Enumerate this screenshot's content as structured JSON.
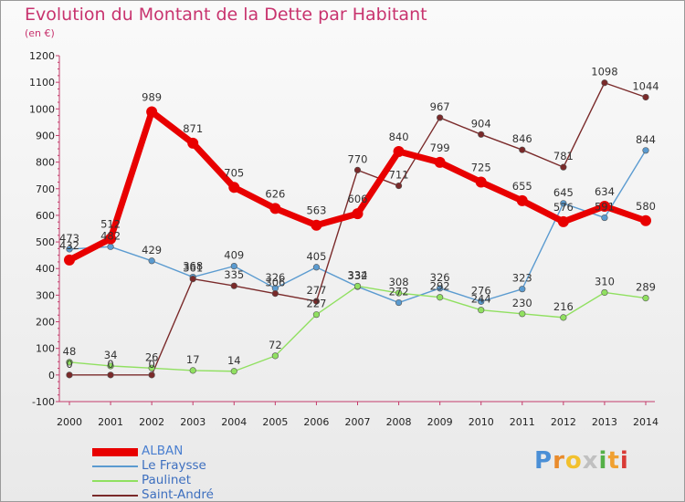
{
  "header": {
    "title": "Evolution du Montant de la Dette par Habitant",
    "subtitle": "(en €)"
  },
  "brand": {
    "letters": [
      "P",
      "r",
      "o",
      "x",
      "i",
      "t",
      "i"
    ],
    "colors": [
      "#4b8fd6",
      "#e98b2c",
      "#f2c12e",
      "#c0c0c0",
      "#55b047",
      "#f0a030",
      "#d93a35"
    ]
  },
  "chart_data": {
    "type": "line",
    "title": "Evolution du Montant de la Dette par Habitant",
    "subtitle": "(en €)",
    "xlabel": "",
    "ylabel": "",
    "x": [
      "2000",
      "2001",
      "2002",
      "2003",
      "2004",
      "2005",
      "2006",
      "2007",
      "2008",
      "2009",
      "2010",
      "2011",
      "2012",
      "2013",
      "2014"
    ],
    "ylim": [
      -100,
      1200
    ],
    "yticks": [
      -100,
      0,
      100,
      200,
      300,
      400,
      500,
      600,
      700,
      800,
      900,
      1000,
      1100,
      1200
    ],
    "grid": false,
    "legend_position": "bottom-left",
    "series": [
      {
        "name": "ALBAN",
        "color": "#e80000",
        "values": [
          432,
          512,
          989,
          871,
          705,
          626,
          563,
          606,
          840,
          799,
          725,
          655,
          576,
          634,
          580
        ]
      },
      {
        "name": "Le Fraysse",
        "color": "#5b9bd0",
        "values": [
          473,
          482,
          429,
          368,
          409,
          326,
          405,
          332,
          272,
          326,
          276,
          323,
          645,
          591,
          844
        ]
      },
      {
        "name": "Paulinet",
        "color": "#90e060",
        "values": [
          48,
          34,
          26,
          17,
          14,
          72,
          227,
          334,
          308,
          292,
          244,
          230,
          216,
          310,
          289
        ]
      },
      {
        "name": "Saint-André",
        "color": "#7a2a2a",
        "values": [
          0,
          0,
          0,
          361,
          335,
          306,
          277,
          770,
          711,
          967,
          904,
          846,
          781,
          1098,
          1044
        ]
      }
    ]
  }
}
